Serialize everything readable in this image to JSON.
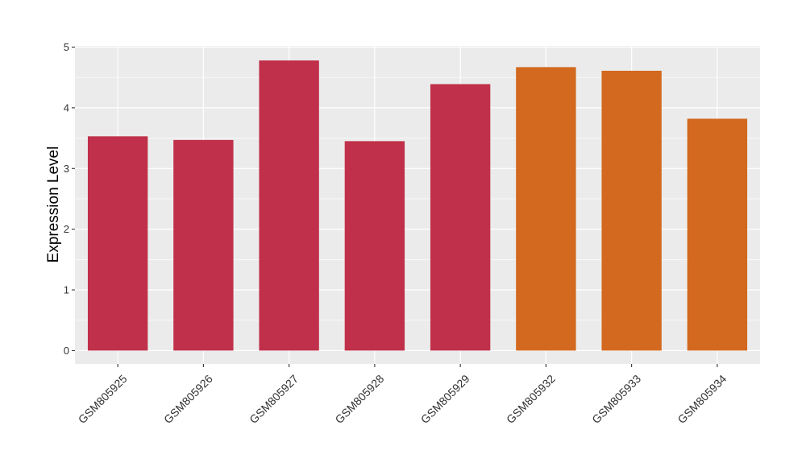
{
  "chart_data": {
    "type": "bar",
    "title": "",
    "xlabel": "",
    "ylabel": "Expression Level",
    "categories": [
      "GSM805925",
      "GSM805926",
      "GSM805927",
      "GSM805928",
      "GSM805929",
      "GSM805932",
      "GSM805933",
      "GSM805934"
    ],
    "values": [
      3.53,
      3.47,
      4.78,
      3.45,
      4.39,
      4.67,
      4.61,
      3.82
    ],
    "bar_colors": [
      "#c0304a",
      "#c0304a",
      "#c0304a",
      "#c0304a",
      "#c0304a",
      "#d2691e",
      "#d2691e",
      "#d2691e"
    ],
    "ylim": [
      -0.22,
      5.02
    ],
    "yticks": [
      0,
      1,
      2,
      3,
      4,
      5
    ],
    "grid": true,
    "panel_background": "#ebebeb",
    "grid_color": "#ffffff"
  }
}
